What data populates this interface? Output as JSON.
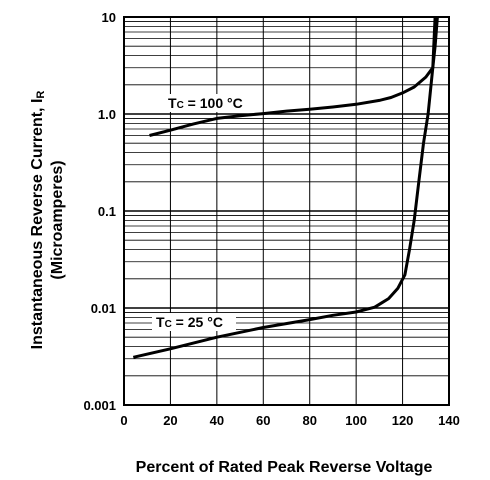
{
  "chart_data": {
    "type": "line",
    "xlabel": "Percent of Rated Peak Reverse Voltage",
    "ylabel_line1": "Instantaneous Reverse Current, I",
    "ylabel_sub": "R",
    "ylabel_line2": "(Microamperes)",
    "xlim": [
      0,
      140
    ],
    "ylim": [
      0.001,
      10
    ],
    "yscale": "log",
    "grid": true,
    "x_ticks": [
      {
        "value": 0,
        "label": "0"
      },
      {
        "value": 20,
        "label": "20"
      },
      {
        "value": 40,
        "label": "40"
      },
      {
        "value": 60,
        "label": "60"
      },
      {
        "value": 80,
        "label": "80"
      },
      {
        "value": 100,
        "label": "100"
      },
      {
        "value": 120,
        "label": "120"
      },
      {
        "value": 140,
        "label": "140"
      }
    ],
    "y_ticks": [
      {
        "value": 0.001,
        "label": "0.001"
      },
      {
        "value": 0.01,
        "label": "0.01"
      },
      {
        "value": 0.1,
        "label": "0.1"
      },
      {
        "value": 1,
        "label": "1.0"
      },
      {
        "value": 10,
        "label": "10"
      }
    ],
    "series": [
      {
        "name": "TC = 100 °C",
        "label_main": "T",
        "label_sub": "C",
        "label_rest": " = 100 °C",
        "x": [
          11,
          20,
          30,
          40,
          50,
          60,
          70,
          80,
          90,
          100,
          110,
          115,
          120,
          125,
          130,
          133,
          134,
          135
        ],
        "y": [
          0.6,
          0.68,
          0.79,
          0.9,
          0.96,
          1.01,
          1.07,
          1.12,
          1.18,
          1.26,
          1.38,
          1.48,
          1.65,
          1.9,
          2.4,
          3.0,
          5.0,
          10.0
        ]
      },
      {
        "name": "TC = 25 °C",
        "label_main": "T",
        "label_sub": "C",
        "label_rest": " = 25 °C",
        "x": [
          4,
          20,
          40,
          60,
          80,
          90,
          100,
          108,
          114,
          118,
          121,
          123,
          125,
          127,
          129,
          131,
          133,
          134
        ],
        "y": [
          0.0031,
          0.0038,
          0.005,
          0.0063,
          0.0076,
          0.0084,
          0.0091,
          0.0102,
          0.0125,
          0.016,
          0.022,
          0.04,
          0.08,
          0.2,
          0.5,
          1.0,
          3.0,
          10.0
        ]
      }
    ]
  }
}
